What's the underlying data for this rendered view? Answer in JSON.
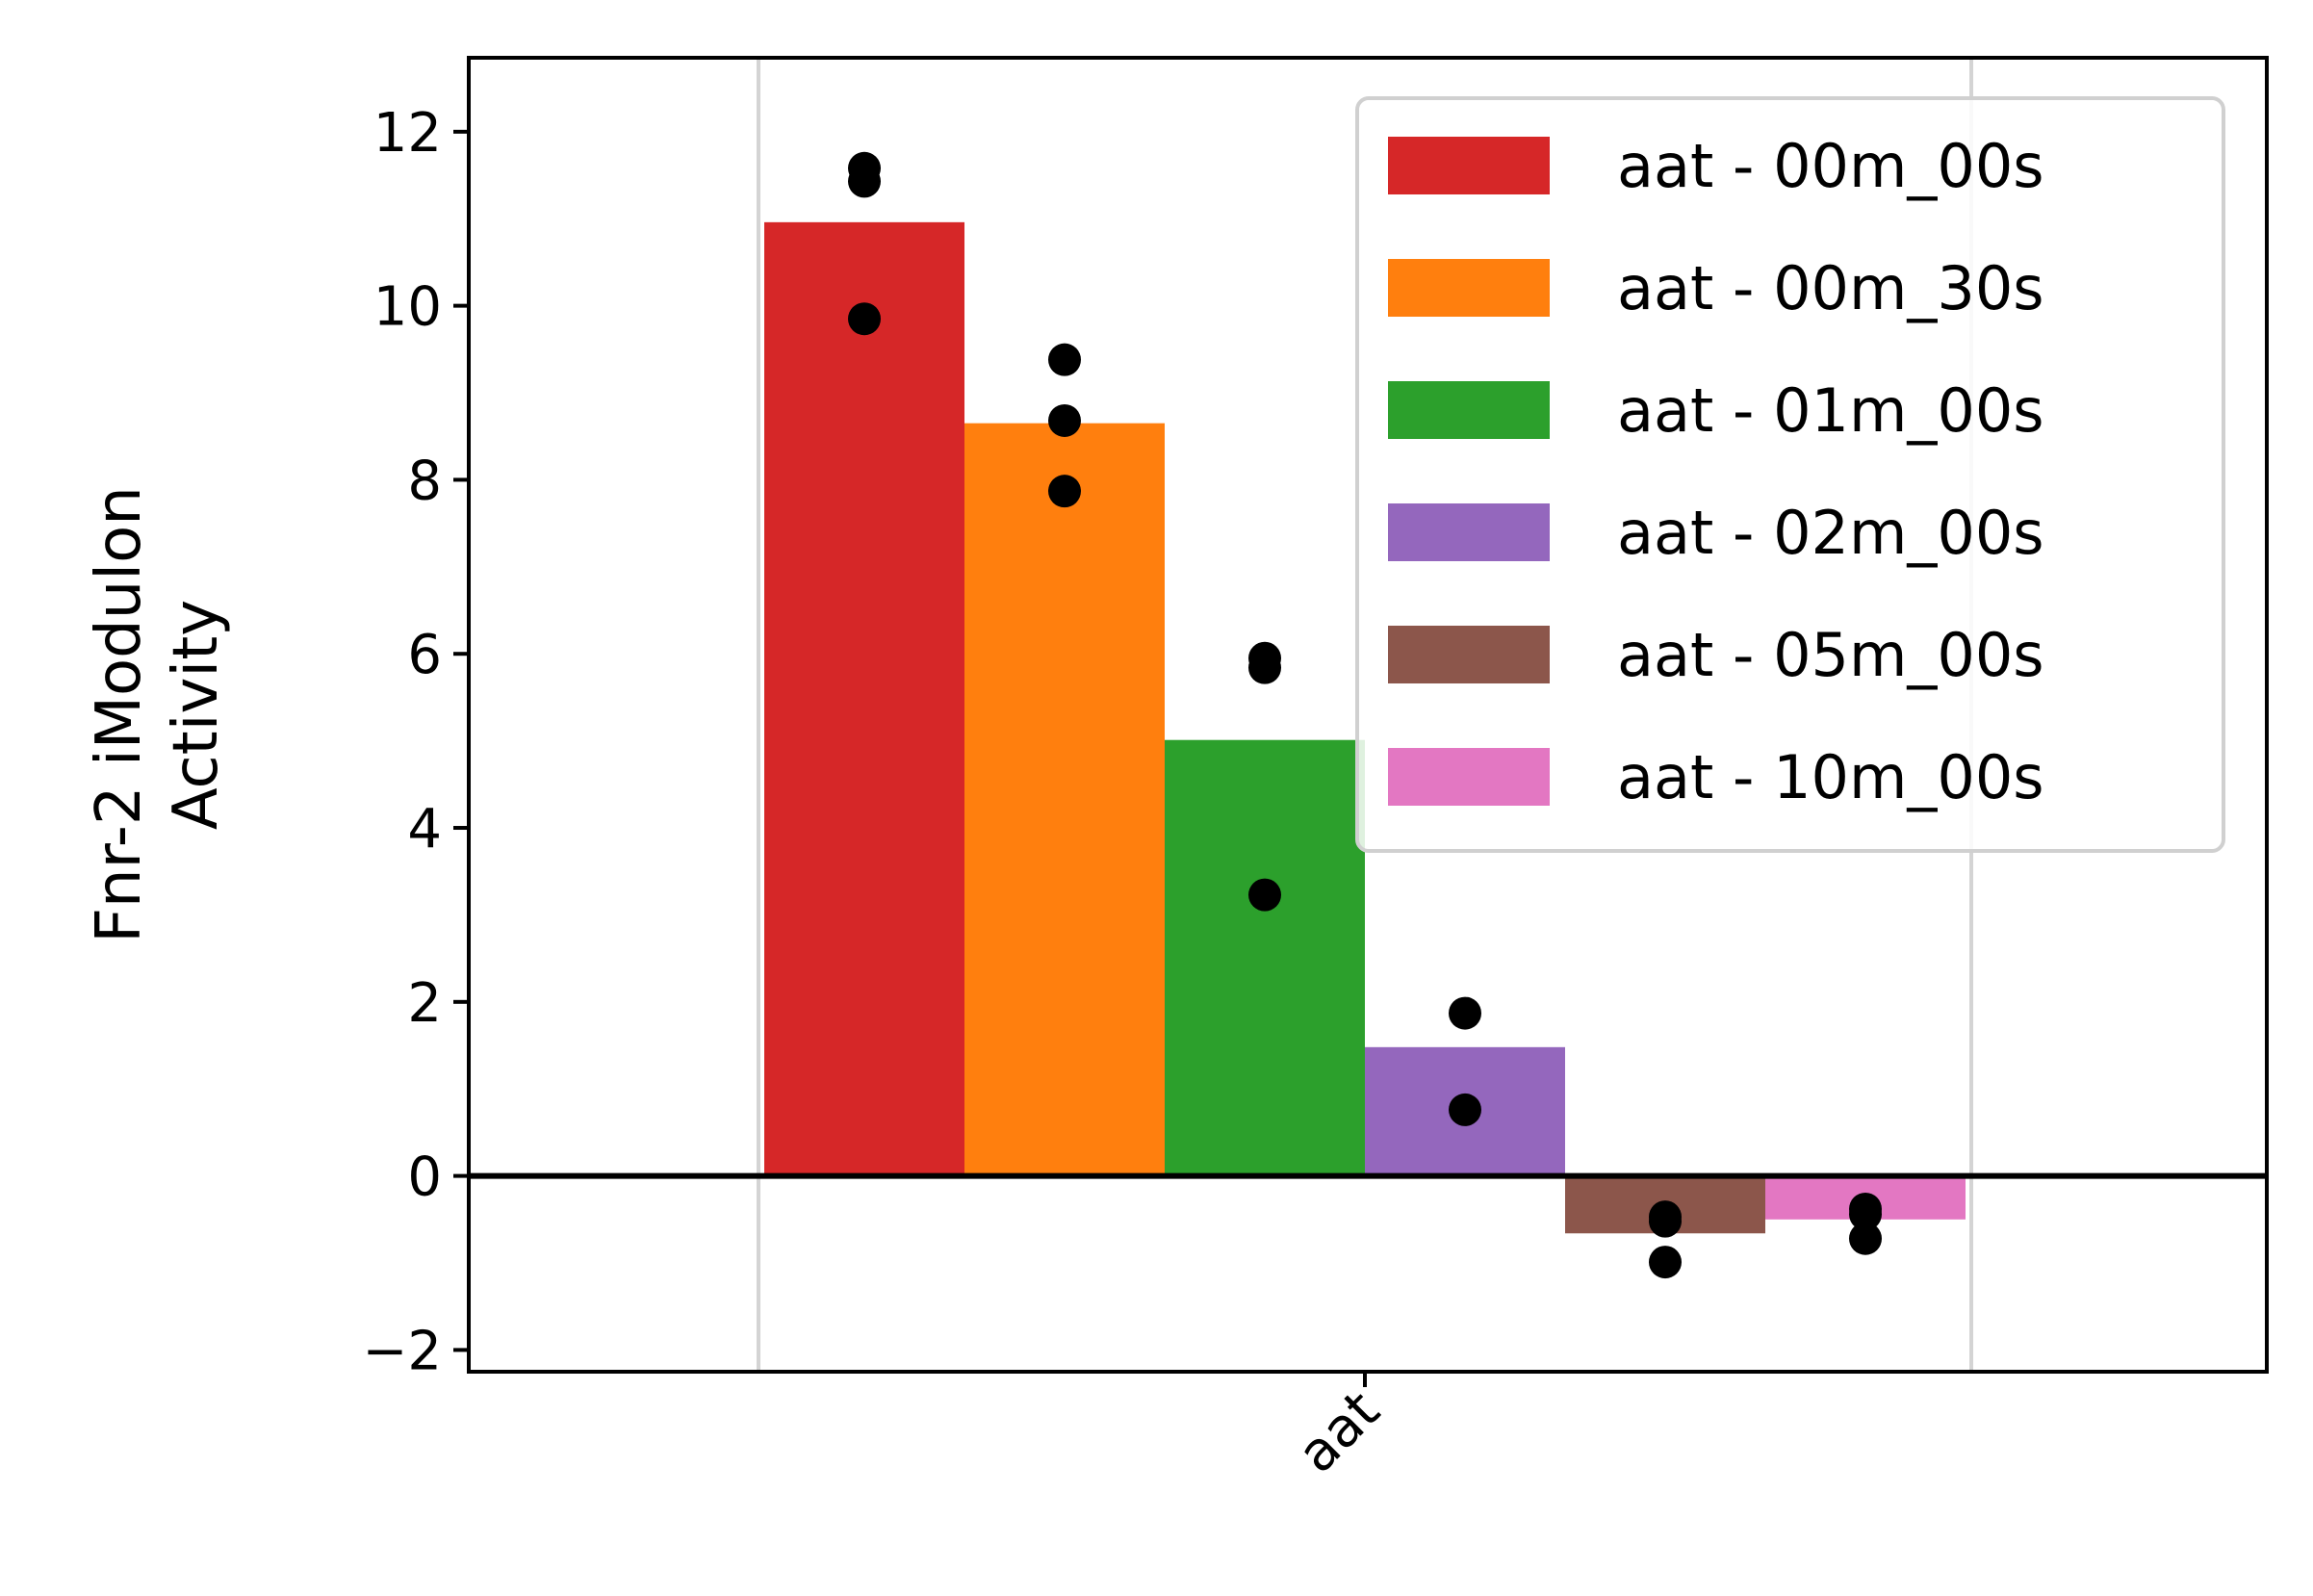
{
  "chart_data": {
    "type": "bar",
    "categories": [
      "aat"
    ],
    "ylabel_lines": [
      "Fnr-2 iModulon",
      "Activity"
    ],
    "xlabel": "",
    "ylim": [
      -2.25,
      12.85
    ],
    "yticks": [
      -2,
      0,
      2,
      4,
      6,
      8,
      10,
      12
    ],
    "ytick_labels": [
      "−2",
      "0",
      "2",
      "4",
      "6",
      "8",
      "10",
      "12"
    ],
    "grid": "vertical",
    "legend_position": "top-right",
    "series": [
      {
        "name": "aat - 00m_00s",
        "color": "#d62728",
        "value": 10.96,
        "points": [
          11.58,
          11.43,
          9.85
        ]
      },
      {
        "name": "aat - 00m_30s",
        "color": "#ff7f0e",
        "value": 8.65,
        "points": [
          9.38,
          8.68,
          7.87
        ]
      },
      {
        "name": "aat - 01m_00s",
        "color": "#2ca02c",
        "value": 5.01,
        "points": [
          5.95,
          5.84,
          3.23
        ]
      },
      {
        "name": "aat - 02m_00s",
        "color": "#9467bd",
        "value": 1.48,
        "points": [
          1.87,
          0.76
        ]
      },
      {
        "name": "aat - 05m_00s",
        "color": "#8c564b",
        "value": -0.66,
        "points": [
          -0.47,
          -0.52,
          -0.99
        ]
      },
      {
        "name": "aat - 10m_00s",
        "color": "#e377c2",
        "value": -0.5,
        "points": [
          -0.38,
          -0.44,
          -0.72
        ]
      }
    ]
  }
}
